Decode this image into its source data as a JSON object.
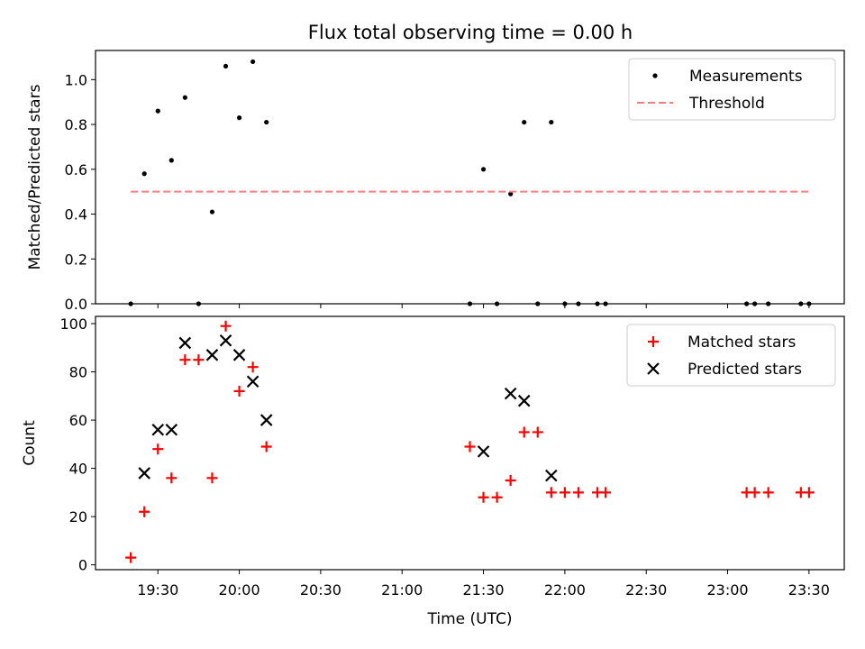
{
  "title": "Flux total observing time = 0.00 h",
  "colors": {
    "matched": "#ff0000",
    "predicted": "#000000",
    "measurement": "#000000",
    "threshold": "#ff7f7f"
  },
  "chart_data": [
    {
      "type": "scatter",
      "ylabel": "Matched/Predicted stars",
      "xlabel": "",
      "xlim": [
        "19:07",
        "23:43"
      ],
      "ylim": [
        0,
        1.13
      ],
      "yticks": [
        0.0,
        0.2,
        0.4,
        0.6,
        0.8,
        1.0
      ],
      "grid": false,
      "legend_position": "upper right",
      "series": [
        {
          "name": "Measurements",
          "marker": "dot",
          "x": [
            "19:20",
            "19:25",
            "19:30",
            "19:35",
            "19:40",
            "19:45",
            "19:50",
            "19:55",
            "20:00",
            "20:05",
            "20:10",
            "21:25",
            "21:30",
            "21:35",
            "21:40",
            "21:45",
            "21:50",
            "21:55",
            "22:00",
            "22:05",
            "22:12",
            "22:15",
            "23:07",
            "23:10",
            "23:15",
            "23:27",
            "23:30"
          ],
          "y": [
            0.0,
            0.58,
            0.86,
            0.64,
            0.92,
            0.0,
            0.41,
            1.06,
            0.83,
            1.08,
            0.81,
            0.0,
            0.6,
            0.0,
            0.49,
            0.81,
            0.0,
            0.81,
            0.0,
            0.0,
            0.0,
            0.0,
            0.0,
            0.0,
            0.0,
            0.0,
            0.0
          ]
        },
        {
          "name": "Threshold",
          "style": "dashed",
          "x": [
            "19:20",
            "23:30"
          ],
          "y": [
            0.5,
            0.5
          ]
        }
      ]
    },
    {
      "type": "scatter",
      "ylabel": "Count",
      "xlabel": "Time (UTC)",
      "xlim": [
        "19:07",
        "23:43"
      ],
      "ylim": [
        -2,
        103
      ],
      "yticks": [
        0,
        20,
        40,
        60,
        80,
        100
      ],
      "xticks": [
        "19:30",
        "20:00",
        "20:30",
        "21:00",
        "21:30",
        "22:00",
        "22:30",
        "23:00",
        "23:30"
      ],
      "grid": false,
      "legend_position": "upper right",
      "series": [
        {
          "name": "Matched stars",
          "marker": "plus",
          "x": [
            "19:20",
            "19:25",
            "19:30",
            "19:35",
            "19:40",
            "19:45",
            "19:50",
            "19:55",
            "20:00",
            "20:05",
            "20:10",
            "21:25",
            "21:30",
            "21:35",
            "21:40",
            "21:45",
            "21:50",
            "21:55",
            "22:00",
            "22:05",
            "22:12",
            "22:15",
            "23:07",
            "23:10",
            "23:15",
            "23:27",
            "23:30"
          ],
          "y": [
            3,
            22,
            48,
            36,
            85,
            85,
            36,
            99,
            72,
            82,
            49,
            49,
            28,
            28,
            35,
            55,
            55,
            30,
            30,
            30,
            30,
            30,
            30,
            30,
            30,
            30,
            30
          ]
        },
        {
          "name": "Predicted stars",
          "marker": "x",
          "x": [
            "19:25",
            "19:30",
            "19:35",
            "19:40",
            "19:50",
            "19:55",
            "20:00",
            "20:05",
            "20:10",
            "21:30",
            "21:40",
            "21:45",
            "21:55"
          ],
          "y": [
            38,
            56,
            56,
            92,
            87,
            93,
            87,
            76,
            60,
            47,
            71,
            68,
            37
          ]
        }
      ]
    }
  ]
}
